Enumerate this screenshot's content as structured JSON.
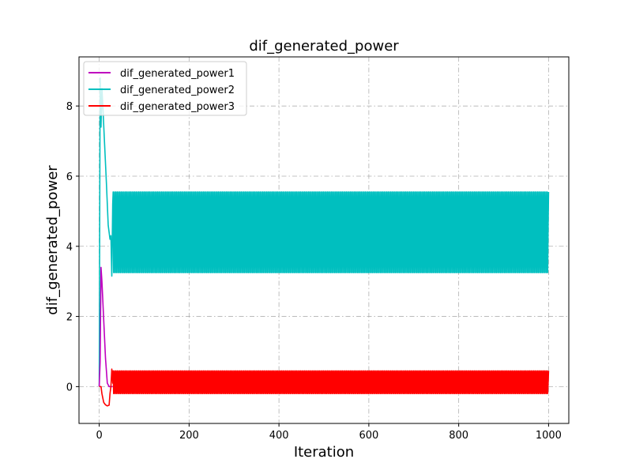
{
  "chart_data": {
    "type": "line",
    "title": "dif_generated_power",
    "xlabel": "Iteration",
    "ylabel": "dif_generated_power",
    "xlim": [
      -45,
      1045
    ],
    "ylim": [
      -1.05,
      9.4
    ],
    "xticks": [
      0,
      200,
      400,
      600,
      800,
      1000
    ],
    "yticks": [
      0,
      2,
      4,
      6,
      8
    ],
    "grid": true,
    "grid_style": "dashdot",
    "legend_position": "upper-left",
    "series": [
      {
        "name": "dif_generated_power1",
        "color": "#bf00bf",
        "x": [
          0,
          2,
          4,
          6,
          10,
          14,
          18,
          22,
          26,
          30
        ],
        "y": [
          0,
          0.7,
          3.4,
          3.0,
          1.9,
          0.8,
          0.1,
          0.0,
          0.0,
          0.0
        ]
      },
      {
        "name": "dif_generated_power2",
        "color": "#00bfbf",
        "x": [
          0,
          2,
          4,
          6,
          8,
          12,
          16,
          20,
          24,
          26,
          28,
          30
        ],
        "y": [
          0,
          8.8,
          7.4,
          8.5,
          8.0,
          6.9,
          5.8,
          4.6,
          4.2,
          4.3,
          3.15,
          5.2
        ],
        "oscillation": {
          "from_x": 30,
          "to_x": 1000,
          "period": 3,
          "pattern": [
            5.55,
            3.25,
            4.6,
            5.55,
            3.25,
            4.6
          ]
        }
      },
      {
        "name": "dif_generated_power3",
        "color": "#ff0000",
        "x": [
          0,
          2,
          4,
          6,
          10,
          14,
          18,
          22,
          24,
          26,
          28,
          30
        ],
        "y": [
          0,
          0.0,
          0.0,
          -0.2,
          -0.45,
          -0.52,
          -0.55,
          -0.53,
          -0.2,
          0.0,
          0.5,
          0.1
        ],
        "oscillation": {
          "from_x": 30,
          "to_x": 1000,
          "period": 3,
          "pattern": [
            0.45,
            -0.2,
            0.1,
            0.45,
            -0.2,
            0.1
          ]
        }
      }
    ]
  }
}
